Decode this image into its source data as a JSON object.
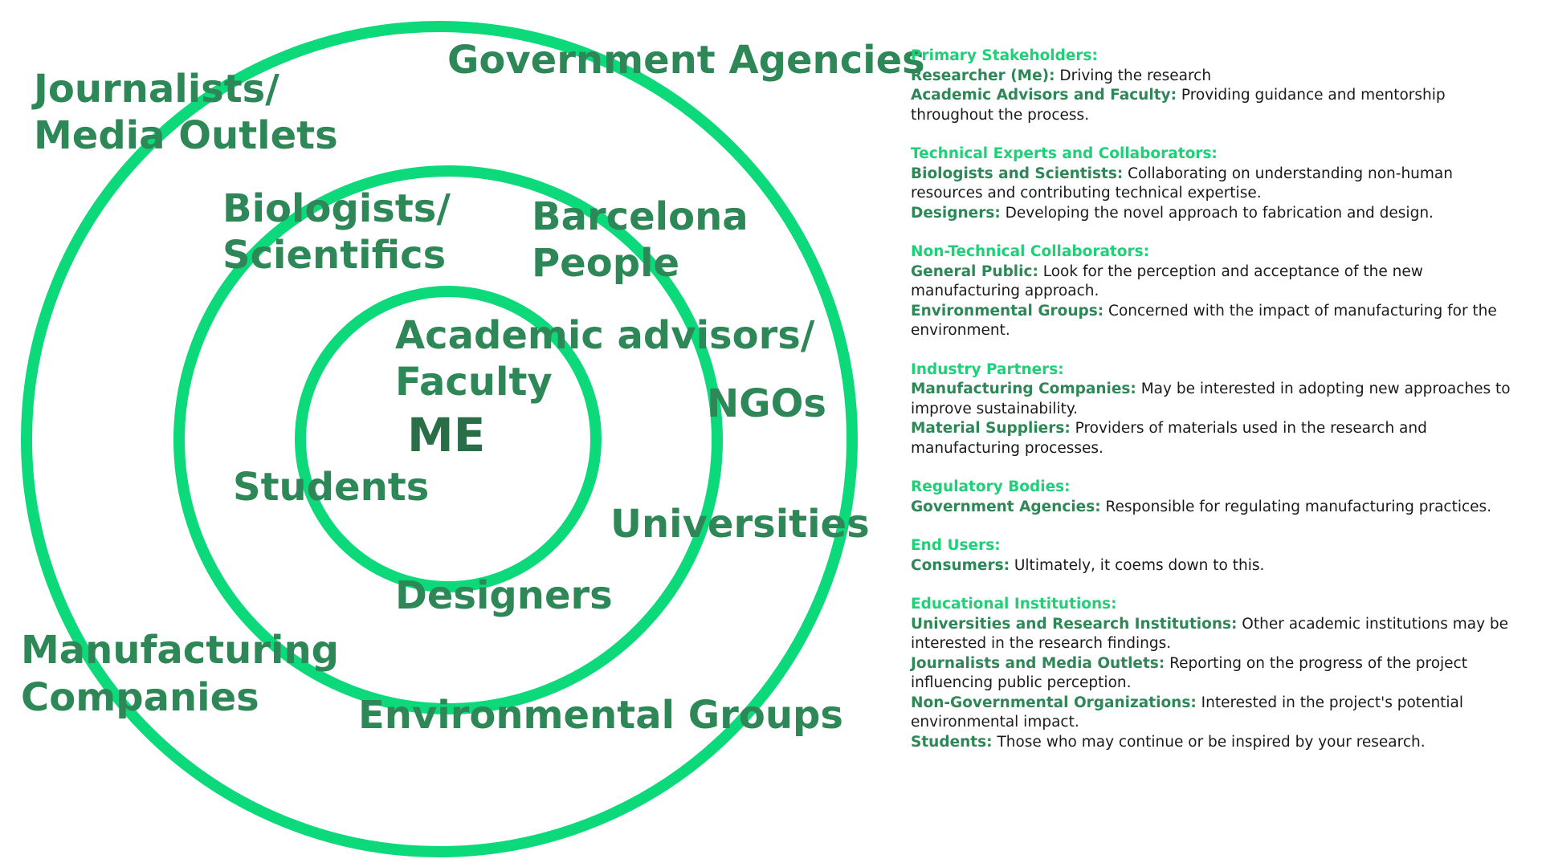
{
  "diagram": {
    "center": "ME",
    "inner_ring": {
      "labels": [
        "Academic advisors/",
        "Faculty",
        "Students",
        "Designers"
      ]
    },
    "middle_ring": {
      "labels": [
        "Biologists/",
        "Scientifics",
        "Barcelona",
        "People",
        "NGOs",
        "Universities",
        "Environmental Groups"
      ]
    },
    "outer_ring": {
      "labels": [
        "Government Agencies",
        "Journalists/",
        "Media Outlets",
        "Manufacturing",
        "Companies"
      ]
    },
    "ring_color": "#0bd97a",
    "label_color": "#2e8756",
    "center_color": "#2a6e48"
  },
  "legend": {
    "title_color": "#1fd078",
    "sections": [
      {
        "title": "Primary Stakeholders:",
        "entries": [
          {
            "term": "Researcher (Me):",
            "desc": " Driving the research"
          },
          {
            "term": "Academic Advisors and Faculty:",
            "desc": " Providing guidance and mentorship throughout the process."
          }
        ]
      },
      {
        "title": "Technical Experts and Collaborators:",
        "entries": [
          {
            "term": "Biologists and Scientists:",
            "desc": " Collaborating on understanding non-human resources and contributing technical expertise."
          },
          {
            "term": "Designers:",
            "desc": " Developing the novel approach to fabrication and design."
          }
        ]
      },
      {
        "title": "Non-Technical Collaborators:",
        "entries": [
          {
            "term": "General Public:",
            "desc": " Look for the perception and acceptance of the new manufacturing approach."
          },
          {
            "term": "Environmental Groups:",
            "desc": " Concerned with the impact of manufacturing for the environment."
          }
        ]
      },
      {
        "title": "Industry Partners:",
        "entries": [
          {
            "term": "Manufacturing Companies:",
            "desc": " May be interested in adopting new approaches to improve sustainability."
          },
          {
            "term": "Material Suppliers:",
            "desc": " Providers of materials used in the research and manufacturing processes."
          }
        ]
      },
      {
        "title": "Regulatory Bodies:",
        "entries": [
          {
            "term": "Government Agencies:",
            "desc": " Responsible for regulating manufacturing practices."
          }
        ]
      },
      {
        "title": "End Users:",
        "entries": [
          {
            "term": "Consumers:",
            "desc": " Ultimately, it coems down to this."
          }
        ]
      },
      {
        "title": "Educational Institutions:",
        "entries": [
          {
            "term": "Universities and Research Institutions:",
            "desc": " Other academic institutions may be interested in the research findings."
          },
          {
            "term": "Journalists and Media Outlets:",
            "desc": " Reporting on the progress of the project influencing public perception."
          },
          {
            "term": "Non-Governmental Organizations:",
            "desc": " Interested in the project's potential environmental impact."
          },
          {
            "term": "Students:",
            "desc": " Those who may continue or be inspired by your research."
          }
        ]
      }
    ]
  }
}
